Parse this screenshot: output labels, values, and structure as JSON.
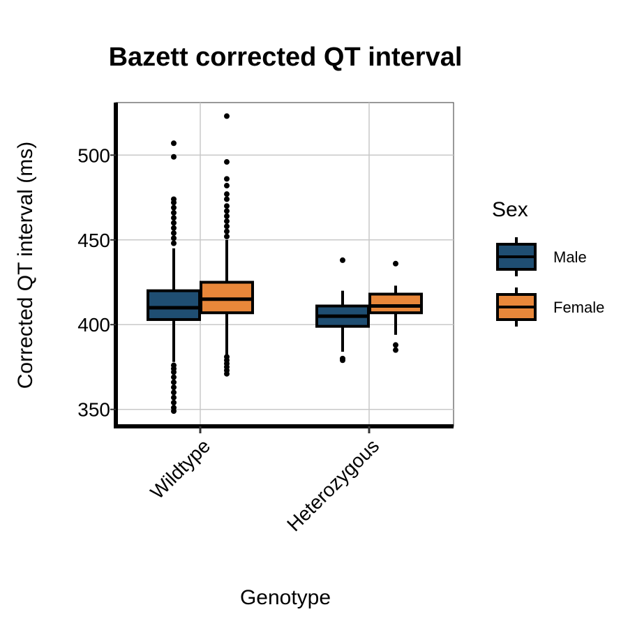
{
  "chart_data": {
    "type": "box",
    "title": "Bazett corrected QT interval",
    "xlabel": "Genotype",
    "ylabel": "Corrected QT interval (ms)",
    "categories": [
      "Wildtype",
      "Heterozygous"
    ],
    "ylim": [
      340,
      531
    ],
    "yticks": [
      350,
      400,
      450,
      500
    ],
    "grid": true,
    "legend": {
      "title": "Sex",
      "position": "right"
    },
    "series": [
      {
        "name": "Male",
        "color": "#1f4e72",
        "boxes": [
          {
            "category": "Wildtype",
            "whisker_low": 378,
            "q1": 403,
            "median": 410,
            "q3": 420,
            "whisker_high": 445,
            "outliers": [
              349,
              351,
              354,
              357,
              360,
              363,
              366,
              369,
              372,
              374,
              376,
              448,
              451,
              454,
              457,
              460,
              463,
              466,
              469,
              472,
              474,
              499,
              507
            ]
          },
          {
            "category": "Heterozygous",
            "whisker_low": 384,
            "q1": 399,
            "median": 405,
            "q3": 411,
            "whisker_high": 420,
            "outliers": [
              379,
              380,
              438
            ]
          }
        ]
      },
      {
        "name": "Female",
        "color": "#e8873a",
        "boxes": [
          {
            "category": "Wildtype",
            "whisker_low": 382,
            "q1": 407,
            "median": 415,
            "q3": 425,
            "whisker_high": 450,
            "outliers": [
              371,
              373,
              375,
              377,
              379,
              381,
              452,
              455,
              458,
              461,
              464,
              467,
              470,
              474,
              477,
              482,
              486,
              496,
              523
            ]
          },
          {
            "category": "Heterozygous",
            "whisker_low": 394,
            "q1": 407,
            "median": 411,
            "q3": 418,
            "whisker_high": 423,
            "outliers": [
              385,
              388,
              436
            ]
          }
        ]
      }
    ]
  }
}
